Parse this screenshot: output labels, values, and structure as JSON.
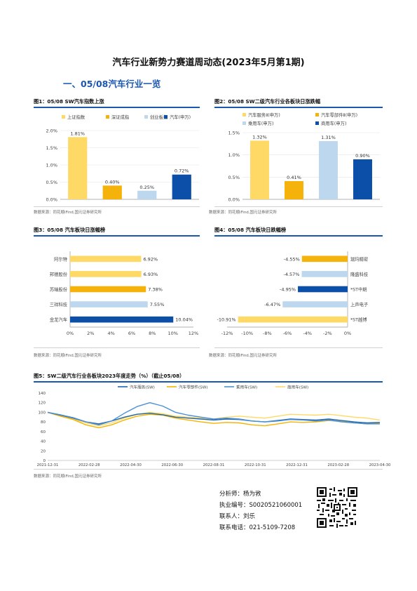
{
  "doc": {
    "title": "汽车行业新势力赛道周动态(2023年5月第1期)",
    "section": "一、05/08汽车行业一览",
    "source_note": "数据来源：同花顺iFind,国元证券研究所"
  },
  "figures": {
    "fig1": {
      "title": "图1：05/08 SW汽车指数上涨"
    },
    "fig2": {
      "title": "图2：05/08 SW二级汽车行业各板块日涨跌幅"
    },
    "fig3": {
      "title": "图3：05/08 汽车板块日涨幅榜"
    },
    "fig4": {
      "title": "图4：05/08 汽车板块日跌幅榜"
    },
    "fig5": {
      "title": "图5：SW二级汽车行业各板块2023年度走势（%）（截止05/08）"
    }
  },
  "colors": {
    "yellow": "#ffd966",
    "orange": "#f5b20a",
    "lightblue": "#bdd7ee",
    "darkblue": "#0b4fa8",
    "line_blue1": "#2166ac",
    "line_yellow": "#f4b400",
    "line_blue2": "#4a90d9",
    "line_yellow2": "#ffd966",
    "accent": "#1a57b0"
  },
  "chart_data": [
    {
      "id": "fig1",
      "type": "bar",
      "categories": [
        "上证指数",
        "深证成指",
        "创业板指",
        "汽车(申万)"
      ],
      "values": [
        1.81,
        0.4,
        0.25,
        0.72
      ],
      "data_labels": [
        "1.81%",
        "0.40%",
        "0.25%",
        "0.72%"
      ],
      "ylim": [
        0,
        2.0
      ],
      "yticks": [
        "0.0%",
        "0.5%",
        "1.0%",
        "1.5%",
        "2.0%"
      ],
      "legend_position": "top"
    },
    {
      "id": "fig2",
      "type": "bar",
      "categories": [
        "汽车服务Ⅱ(申万)",
        "汽车零部件Ⅱ(申万)",
        "乘用车(申万)",
        "商用车(申万)"
      ],
      "values": [
        1.32,
        0.41,
        1.31,
        0.9
      ],
      "data_labels": [
        "1.32%",
        "0.41%",
        "1.31%",
        "0.90%"
      ],
      "ylim": [
        0,
        1.5
      ],
      "yticks": [
        "0.0%",
        "0.5%",
        "1.0%",
        "1.5%"
      ],
      "legend_position": "top"
    },
    {
      "id": "fig3",
      "type": "bar",
      "orientation": "horizontal",
      "categories": [
        "阿尔特",
        "邦德股份",
        "苏轴股份",
        "三祥科技",
        "金龙汽车"
      ],
      "values": [
        6.92,
        6.93,
        7.38,
        7.55,
        10.04
      ],
      "data_labels": [
        "6.92%",
        "6.93%",
        "7.38%",
        "7.55%",
        "10.04%"
      ],
      "xlim": [
        0,
        12
      ],
      "xticks": [
        "0%",
        "2%",
        "4%",
        "6%",
        "8%",
        "10%",
        "12%"
      ]
    },
    {
      "id": "fig4",
      "type": "bar",
      "orientation": "horizontal",
      "categories": [
        "瑞玛精密",
        "隆盛科技",
        "*ST中期",
        "上声电子",
        "*ST越博"
      ],
      "values": [
        -4.55,
        -4.57,
        -4.95,
        -6.47,
        -10.91
      ],
      "data_labels": [
        "-4.55%",
        "-4.57%",
        "-4.95%",
        "-6.47%",
        "-10.91%"
      ],
      "xlim": [
        -12,
        0
      ],
      "xticks": [
        "-12%",
        "-10%",
        "-8%",
        "-6%",
        "-4%",
        "-2%",
        "0%"
      ]
    },
    {
      "id": "fig5",
      "type": "line",
      "x_ticks": [
        "2021-12-31",
        "2022-02-28",
        "2022-04-30",
        "2022-06-30",
        "2022-08-31",
        "2022-10-31",
        "2022-12-31",
        "2023-02-28",
        "2023-04-30"
      ],
      "ylim": [
        0,
        140
      ],
      "yticks": [
        "0",
        "20",
        "40",
        "60",
        "80",
        "100",
        "120",
        "140"
      ],
      "legend_position": "top",
      "series": [
        {
          "name": "汽车服务(SW)",
          "values": [
            100,
            94,
            88,
            80,
            76,
            82,
            90,
            96,
            98,
            95,
            90,
            88,
            86,
            84,
            86,
            85,
            82,
            80,
            83,
            86,
            85,
            84,
            86,
            83,
            80,
            78,
            79
          ]
        },
        {
          "name": "汽车零部件(SW)",
          "values": [
            100,
            92,
            85,
            74,
            68,
            74,
            84,
            92,
            96,
            94,
            88,
            84,
            80,
            77,
            79,
            78,
            74,
            72,
            76,
            80,
            79,
            80,
            83,
            81,
            78,
            76,
            78
          ]
        },
        {
          "name": "乘用车(SW)",
          "values": [
            100,
            95,
            89,
            80,
            74,
            82,
            98,
            112,
            120,
            113,
            100,
            94,
            90,
            86,
            88,
            86,
            82,
            80,
            82,
            85,
            84,
            82,
            84,
            80,
            78,
            76,
            76
          ]
        },
        {
          "name": "商用车(SW)",
          "values": [
            100,
            93,
            86,
            78,
            72,
            78,
            88,
            96,
            100,
            97,
            92,
            90,
            88,
            86,
            90,
            92,
            90,
            88,
            92,
            96,
            95,
            94,
            96,
            93,
            90,
            88,
            84
          ]
        }
      ]
    }
  ],
  "analyst": {
    "name_label": "分析师：",
    "name": "杨为敩",
    "cert_label": "执业编号：",
    "cert": "S0020521060001",
    "contact_label": "联系人：",
    "contact": "刘乐",
    "phone_label": "联系电话：",
    "phone": "021-5109-7208"
  }
}
